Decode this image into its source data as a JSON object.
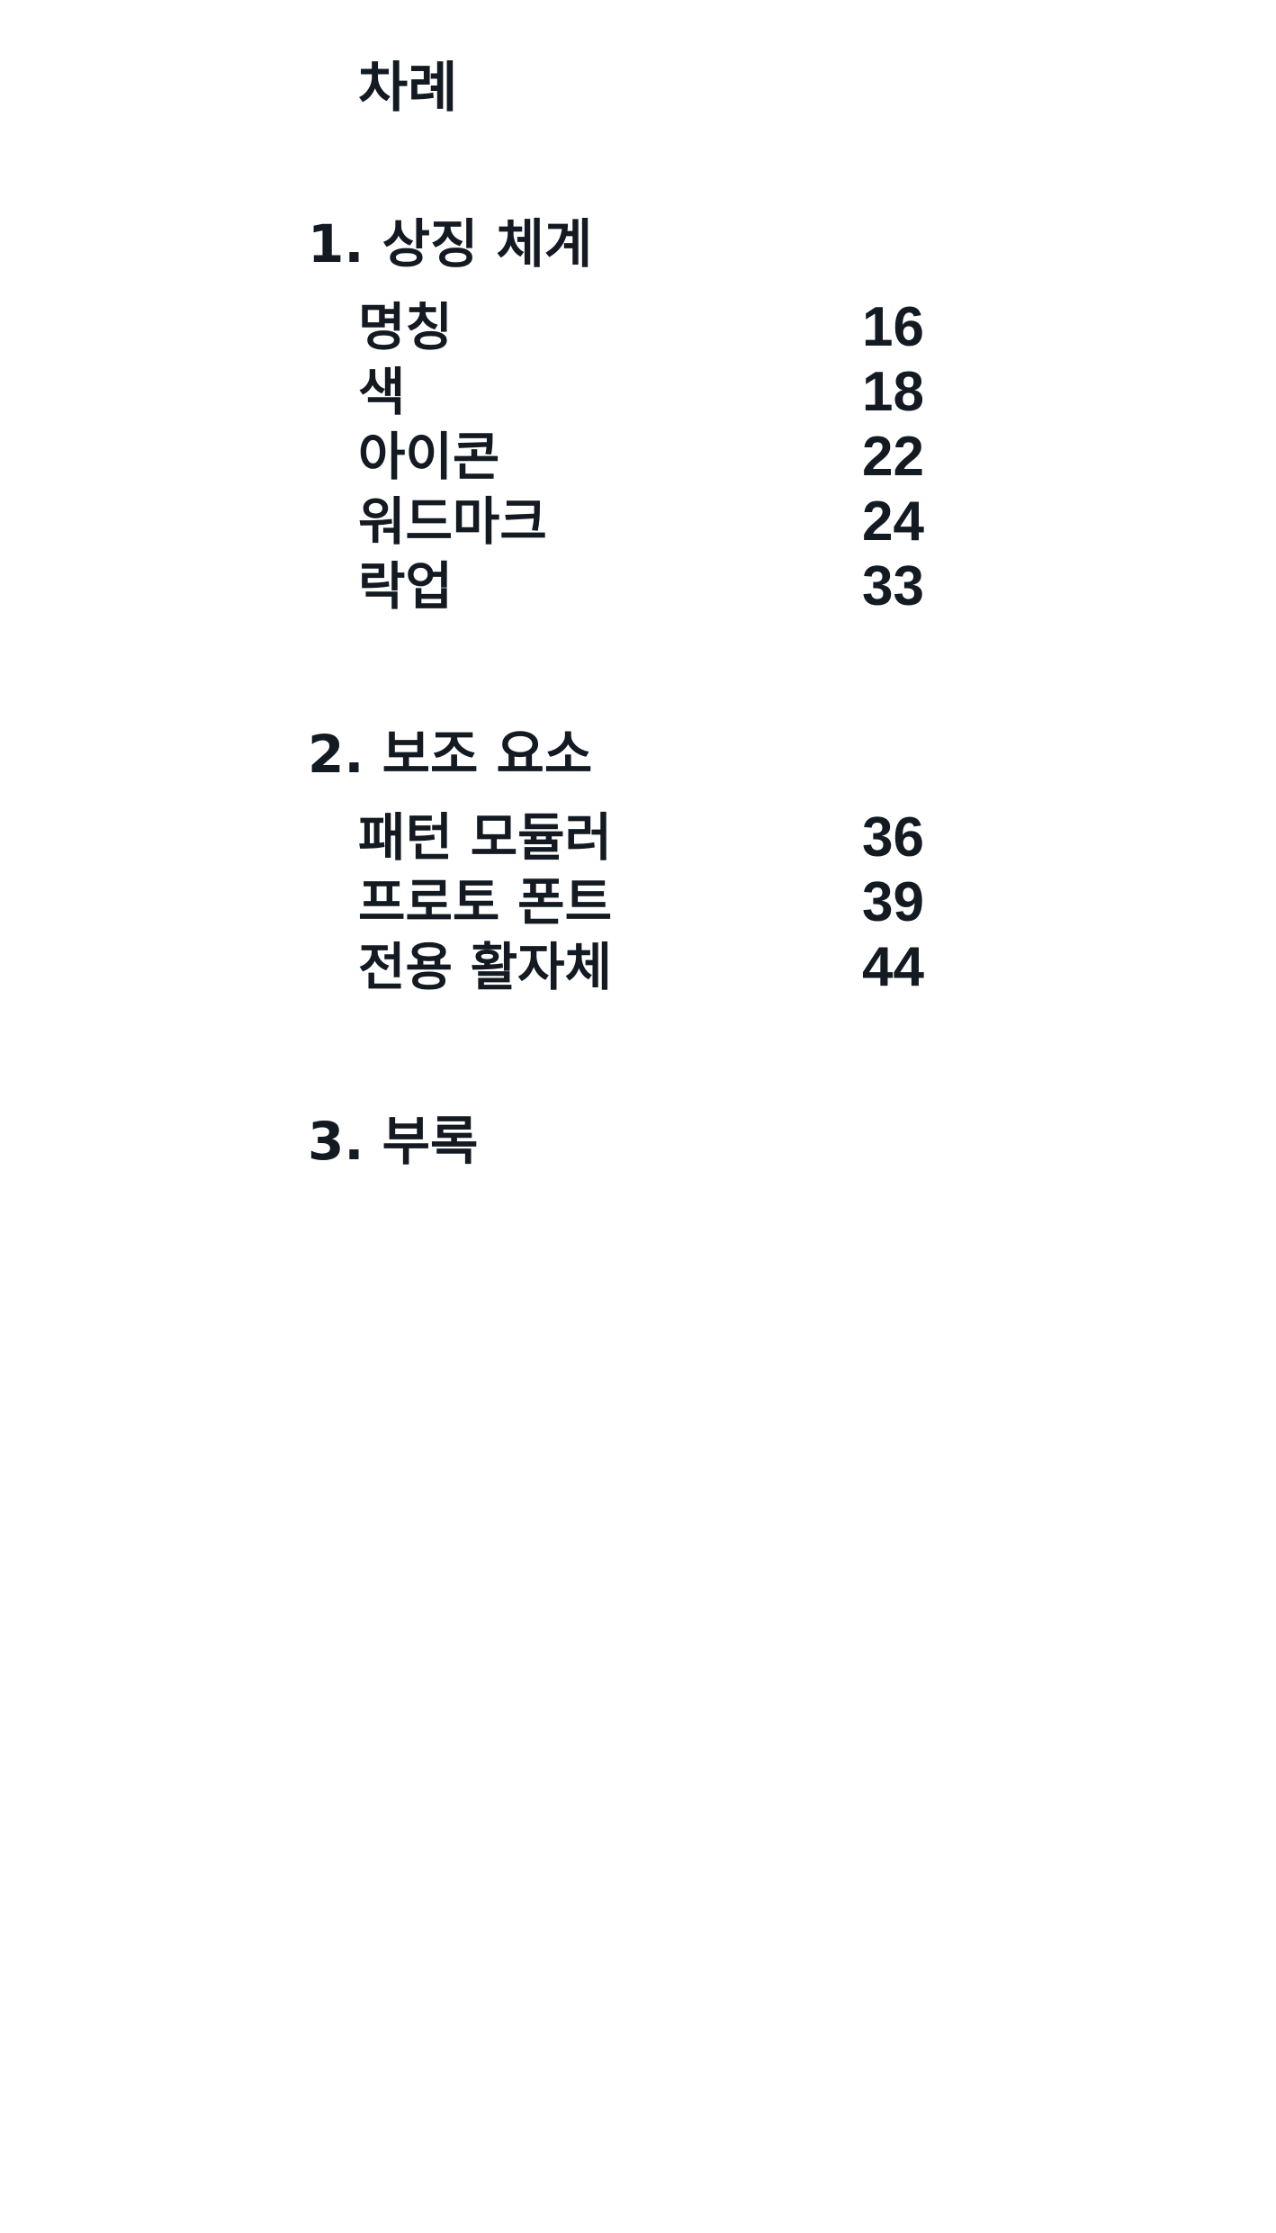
{
  "toc": {
    "title": "차례",
    "sections": [
      {
        "heading": "1. 상징 체계",
        "entries": [
          {
            "label": "명칭",
            "page": "16"
          },
          {
            "label": "색",
            "page": "18"
          },
          {
            "label": "아이콘",
            "page": "22"
          },
          {
            "label": "워드마크",
            "page": "24"
          },
          {
            "label": "락업",
            "page": "33"
          }
        ]
      },
      {
        "heading": "2. 보조 요소",
        "entries": [
          {
            "label": "패턴 모듈러",
            "page": "36"
          },
          {
            "label": "프로토 폰트",
            "page": "39"
          },
          {
            "label": "전용 활자체",
            "page": "44"
          }
        ]
      },
      {
        "heading": "3. 부록",
        "entries": []
      }
    ]
  }
}
